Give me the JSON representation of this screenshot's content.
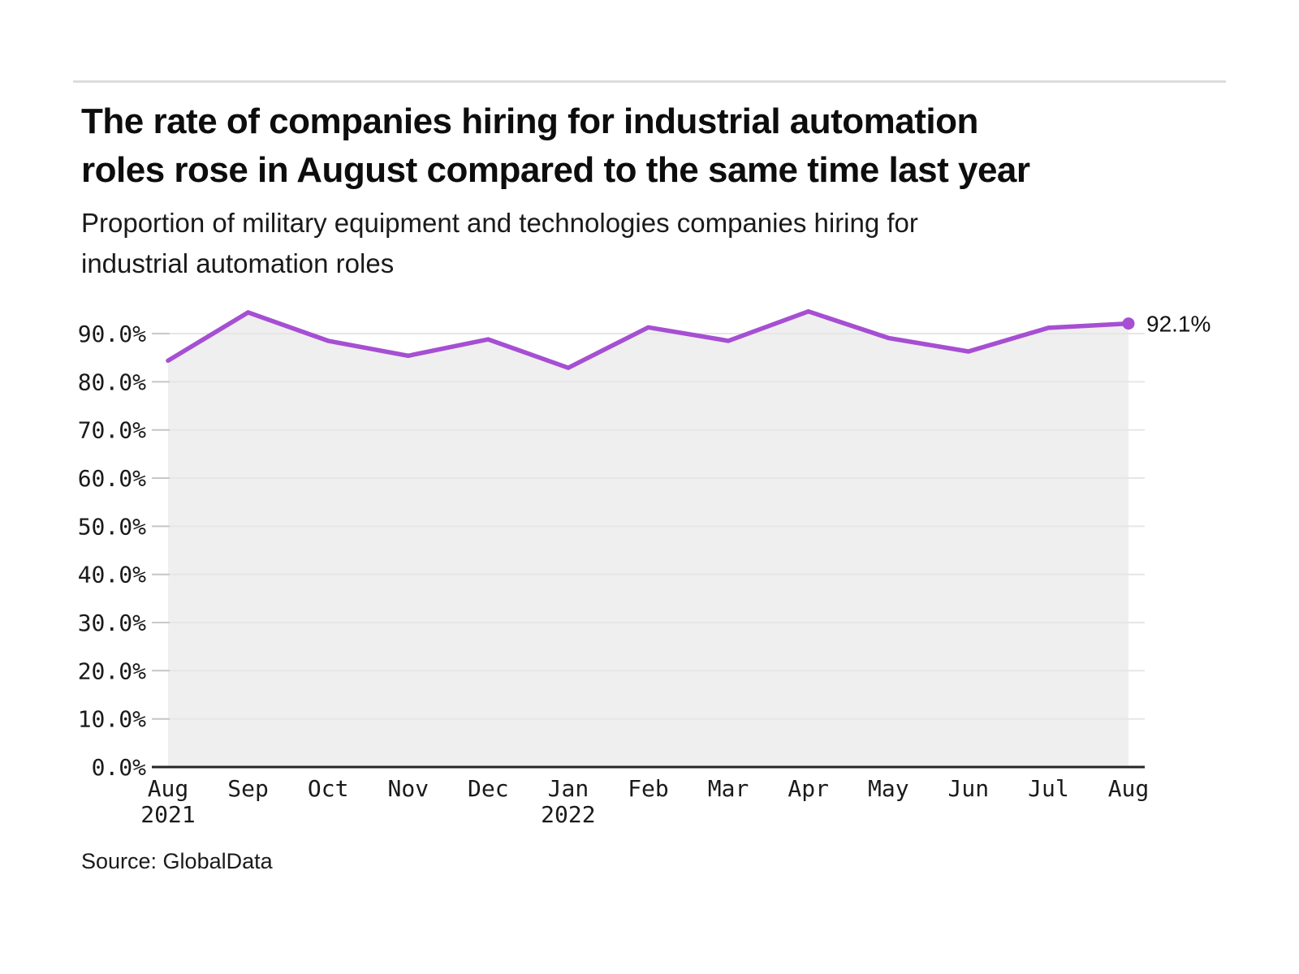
{
  "page": {
    "title_lines": [
      "The rate of companies hiring for industrial automation",
      "roles rose in August compared to the same time last year"
    ],
    "subtitle_lines": [
      "Proportion of military equipment and technologies companies hiring for",
      "industrial automation roles"
    ],
    "source": "Source: GlobalData"
  },
  "chart_data": {
    "type": "area",
    "title": "The rate of companies hiring for industrial automation roles rose in August compared to the same time last year",
    "subtitle": "Proportion of military equipment and technologies companies hiring for industrial automation roles",
    "series_name": "Proportion of military equipment and technologies companies hiring for industrial automation roles",
    "categories": [
      "Aug 2021",
      "Sep 2021",
      "Oct 2021",
      "Nov 2021",
      "Dec 2021",
      "Jan 2022",
      "Feb 2022",
      "Mar 2022",
      "Apr 2022",
      "May 2022",
      "Jun 2022",
      "Jul 2022",
      "Aug 2022"
    ],
    "tick_labels": [
      {
        "month": "Aug",
        "year": "2021"
      },
      {
        "month": "Sep"
      },
      {
        "month": "Oct"
      },
      {
        "month": "Nov"
      },
      {
        "month": "Dec"
      },
      {
        "month": "Jan",
        "year": "2022"
      },
      {
        "month": "Feb"
      },
      {
        "month": "Mar"
      },
      {
        "month": "Apr"
      },
      {
        "month": "May"
      },
      {
        "month": "Jun"
      },
      {
        "month": "Jul"
      },
      {
        "month": "Aug"
      }
    ],
    "values": [
      84.4,
      94.4,
      88.5,
      85.4,
      88.8,
      82.9,
      91.3,
      88.5,
      94.6,
      89.1,
      86.3,
      91.2,
      92.1
    ],
    "end_label": "92.1%",
    "y_ticks": [
      "0.0%",
      "10.0%",
      "20.0%",
      "30.0%",
      "40.0%",
      "50.0%",
      "60.0%",
      "70.0%",
      "80.0%",
      "90.0%"
    ],
    "ylim": [
      0,
      100
    ],
    "grid": true,
    "legend": "none",
    "colors": {
      "line": "#A64FD3",
      "dot": "#A64FD3",
      "fill": "#EFEFEF",
      "grid": "#E6E6E6",
      "grid_stub": "#C8C8C8",
      "axis": "#262626",
      "text": "#1A1A1A"
    }
  }
}
